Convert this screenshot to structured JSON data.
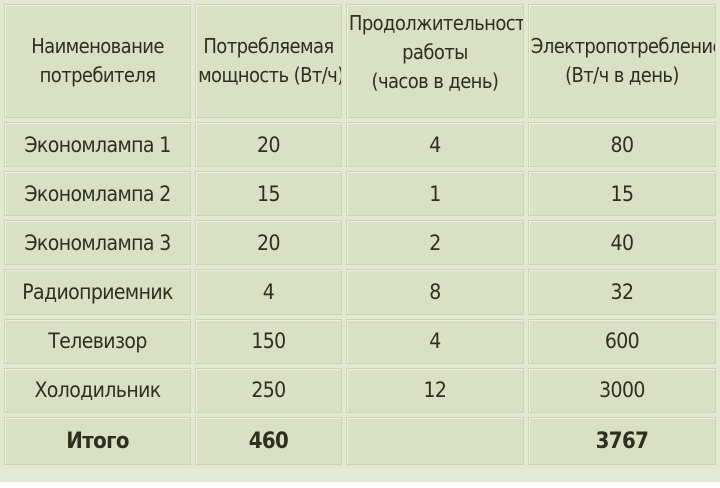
{
  "table": {
    "headers": [
      [
        "Наименование",
        "потребителя"
      ],
      [
        "Потребляемая",
        "мощность (Вт/ч)"
      ],
      [
        "Продолжительность",
        "работы",
        "(часов в день)"
      ],
      [
        "Электропотребление",
        "(Вт/ч в день)"
      ]
    ],
    "rows": [
      [
        "Экономлампа 1",
        "20",
        "4",
        "80"
      ],
      [
        "Экономлампа 2",
        "15",
        "1",
        "15"
      ],
      [
        "Экономлампа 3",
        "20",
        "2",
        "40"
      ],
      [
        "Радиоприемник",
        "4",
        "8",
        "32"
      ],
      [
        "Телевизор",
        "150",
        "4",
        "600"
      ],
      [
        "Холодильник",
        "250",
        "12",
        "3000"
      ]
    ],
    "total": [
      "Итого",
      "460",
      "",
      "3767"
    ]
  },
  "colors": {
    "cell_background": "#d9e0c3",
    "grid_background": "#e3e8d0",
    "text": "#2f2f1f"
  }
}
